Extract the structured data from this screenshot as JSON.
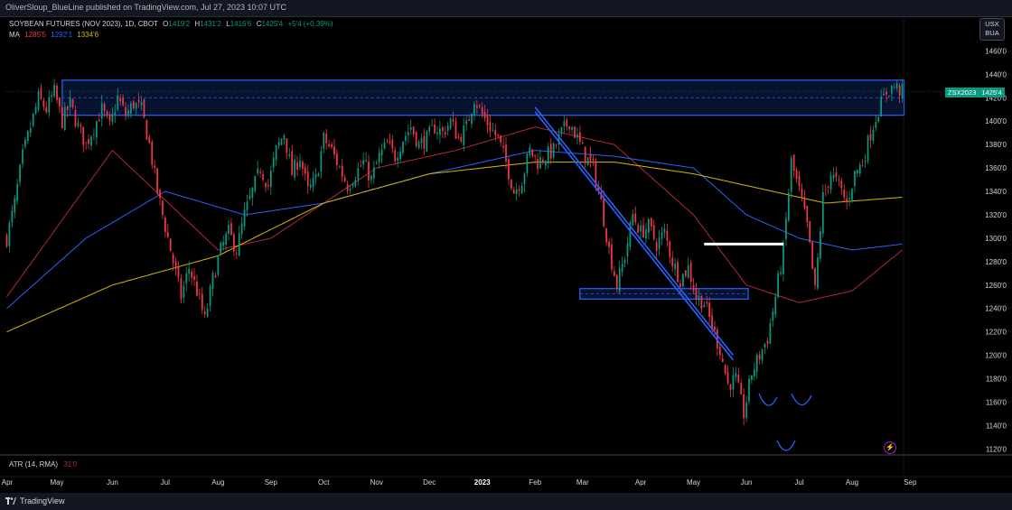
{
  "header": {
    "published_line": "OliverSloup_BlueLine published on TradingView.com, Jul 27, 2023 10:07 UTC"
  },
  "legend": {
    "symbol_line": "SOYBEAN FUTURES (NOV 2023), 1D, CBOT",
    "o_label": "O",
    "o_value": "1419'2",
    "h_label": "H",
    "h_value": "1431'2",
    "l_label": "L",
    "l_value": "1416'6",
    "c_label": "C",
    "c_value": "1425'4",
    "change": "+5'4 (+0.39%)",
    "ma_label": "MA",
    "ma_values": [
      "1285'5",
      "1292'1",
      "1334'6"
    ]
  },
  "currency_button": {
    "line1": "USX",
    "line2": "BUA"
  },
  "price_tag": {
    "symbol": "ZSX2023",
    "price": "1425'4"
  },
  "atr": {
    "label": "ATR (14, RMA)",
    "value": "31'0"
  },
  "footer": {
    "brand": "TradingView"
  },
  "colors": {
    "up": "#089981",
    "down": "#f23645",
    "ma1": "#b22833",
    "ma2": "#2962ff",
    "ma3": "#d6b800",
    "zone": "#2962ff",
    "background": "#000000"
  },
  "chart_data": {
    "type": "candlestick",
    "title": "SOYBEAN FUTURES (NOV 2023), 1D, CBOT",
    "y_ticks": [
      "1460'0",
      "1440'0",
      "1420'0",
      "1400'0",
      "1380'0",
      "1360'0",
      "1340'0",
      "1320'0",
      "1300'0",
      "1280'0",
      "1260'0",
      "1240'0",
      "1220'0",
      "1200'0",
      "1180'0",
      "1160'0",
      "1140'0",
      "1120'0"
    ],
    "y_tick_values": [
      1460,
      1440,
      1420,
      1400,
      1380,
      1360,
      1340,
      1320,
      1300,
      1280,
      1260,
      1240,
      1220,
      1200,
      1180,
      1160,
      1140,
      1120
    ],
    "ylim": [
      1118,
      1468
    ],
    "x_ticks": [
      "Apr",
      "May",
      "Jun",
      "Jul",
      "Aug",
      "Sep",
      "Oct",
      "Nov",
      "Dec",
      "2023",
      "Feb",
      "Mar",
      "Apr",
      "May",
      "Jun",
      "Jul",
      "Aug",
      "Sep"
    ],
    "close_path": [
      [
        0,
        1300
      ],
      [
        3,
        1330
      ],
      [
        6,
        1370
      ],
      [
        9,
        1395
      ],
      [
        12,
        1420
      ],
      [
        15,
        1410
      ],
      [
        18,
        1425
      ],
      [
        21,
        1400
      ],
      [
        24,
        1415
      ],
      [
        27,
        1395
      ],
      [
        30,
        1380
      ],
      [
        33,
        1395
      ],
      [
        36,
        1410
      ],
      [
        39,
        1395
      ],
      [
        42,
        1420
      ],
      [
        45,
        1405
      ],
      [
        48,
        1415
      ],
      [
        51,
        1410
      ],
      [
        54,
        1380
      ],
      [
        57,
        1340
      ],
      [
        60,
        1310
      ],
      [
        63,
        1280
      ],
      [
        66,
        1250
      ],
      [
        69,
        1275
      ],
      [
        72,
        1255
      ],
      [
        75,
        1230
      ],
      [
        78,
        1265
      ],
      [
        81,
        1290
      ],
      [
        84,
        1305
      ],
      [
        87,
        1290
      ],
      [
        90,
        1320
      ],
      [
        93,
        1340
      ],
      [
        96,
        1360
      ],
      [
        99,
        1345
      ],
      [
        102,
        1375
      ],
      [
        105,
        1390
      ],
      [
        108,
        1355
      ],
      [
        111,
        1370
      ],
      [
        114,
        1340
      ],
      [
        117,
        1350
      ],
      [
        120,
        1385
      ],
      [
        123,
        1375
      ],
      [
        126,
        1360
      ],
      [
        129,
        1345
      ],
      [
        132,
        1355
      ],
      [
        135,
        1365
      ],
      [
        138,
        1350
      ],
      [
        141,
        1370
      ],
      [
        144,
        1380
      ],
      [
        147,
        1370
      ],
      [
        150,
        1385
      ],
      [
        153,
        1395
      ],
      [
        156,
        1380
      ],
      [
        159,
        1385
      ],
      [
        162,
        1395
      ],
      [
        165,
        1390
      ],
      [
        168,
        1400
      ],
      [
        171,
        1385
      ],
      [
        174,
        1395
      ],
      [
        177,
        1420
      ],
      [
        180,
        1405
      ],
      [
        183,
        1395
      ],
      [
        186,
        1385
      ],
      [
        189,
        1365
      ],
      [
        192,
        1340
      ],
      [
        195,
        1350
      ],
      [
        198,
        1375
      ],
      [
        201,
        1365
      ],
      [
        204,
        1370
      ],
      [
        207,
        1375
      ],
      [
        210,
        1390
      ],
      [
        213,
        1400
      ],
      [
        216,
        1385
      ],
      [
        219,
        1370
      ],
      [
        222,
        1360
      ],
      [
        225,
        1330
      ],
      [
        228,
        1290
      ],
      [
        231,
        1260
      ],
      [
        234,
        1285
      ],
      [
        237,
        1320
      ],
      [
        240,
        1305
      ],
      [
        243,
        1310
      ],
      [
        246,
        1295
      ],
      [
        249,
        1305
      ],
      [
        252,
        1280
      ],
      [
        255,
        1265
      ],
      [
        258,
        1275
      ],
      [
        261,
        1250
      ],
      [
        264,
        1245
      ],
      [
        267,
        1225
      ],
      [
        270,
        1205
      ],
      [
        273,
        1175
      ],
      [
        276,
        1180
      ],
      [
        279,
        1150
      ],
      [
        282,
        1185
      ],
      [
        285,
        1200
      ],
      [
        288,
        1215
      ],
      [
        291,
        1250
      ],
      [
        294,
        1290
      ],
      [
        297,
        1365
      ],
      [
        300,
        1340
      ],
      [
        303,
        1310
      ],
      [
        306,
        1255
      ],
      [
        309,
        1335
      ],
      [
        312,
        1355
      ],
      [
        315,
        1345
      ],
      [
        318,
        1330
      ],
      [
        321,
        1355
      ],
      [
        324,
        1365
      ],
      [
        327,
        1390
      ],
      [
        330,
        1410
      ],
      [
        333,
        1425
      ],
      [
        336,
        1430
      ],
      [
        339,
        1425
      ]
    ],
    "n_candles": 340,
    "moving_averages": [
      {
        "name": "MA 1285'5",
        "color": "#b22833",
        "points": [
          [
            0,
            1250
          ],
          [
            40,
            1375
          ],
          [
            80,
            1290
          ],
          [
            100,
            1300
          ],
          [
            140,
            1360
          ],
          [
            170,
            1375
          ],
          [
            200,
            1395
          ],
          [
            230,
            1380
          ],
          [
            260,
            1320
          ],
          [
            280,
            1260
          ],
          [
            300,
            1245
          ],
          [
            320,
            1255
          ],
          [
            339,
            1290
          ]
        ]
      },
      {
        "name": "MA 1292'1",
        "color": "#2962ff",
        "points": [
          [
            0,
            1240
          ],
          [
            30,
            1300
          ],
          [
            60,
            1340
          ],
          [
            90,
            1320
          ],
          [
            120,
            1330
          ],
          [
            160,
            1355
          ],
          [
            200,
            1375
          ],
          [
            230,
            1370
          ],
          [
            260,
            1360
          ],
          [
            280,
            1320
          ],
          [
            300,
            1300
          ],
          [
            320,
            1290
          ],
          [
            339,
            1295
          ]
        ]
      },
      {
        "name": "MA 1334'6",
        "color": "#d6b800",
        "points": [
          [
            0,
            1220
          ],
          [
            40,
            1260
          ],
          [
            80,
            1285
          ],
          [
            120,
            1330
          ],
          [
            160,
            1355
          ],
          [
            200,
            1365
          ],
          [
            230,
            1365
          ],
          [
            260,
            1355
          ],
          [
            290,
            1340
          ],
          [
            310,
            1330
          ],
          [
            339,
            1335
          ]
        ]
      }
    ],
    "zones": [
      {
        "from": 1405,
        "to": 1435,
        "x0": 21,
        "x1": 339
      },
      {
        "from": 1248,
        "to": 1257,
        "x0": 217,
        "x1": 280
      }
    ],
    "trendlines": [
      {
        "x0": 200,
        "y0": 1412,
        "x1": 275,
        "y1": 1200
      },
      {
        "x0": 200,
        "y0": 1408,
        "x1": 275,
        "y1": 1196
      }
    ],
    "support_line": {
      "value": 1295,
      "x0": 264,
      "x1": 294
    },
    "last_price": 1425.5,
    "grid": false,
    "legend_position": "top-left"
  }
}
